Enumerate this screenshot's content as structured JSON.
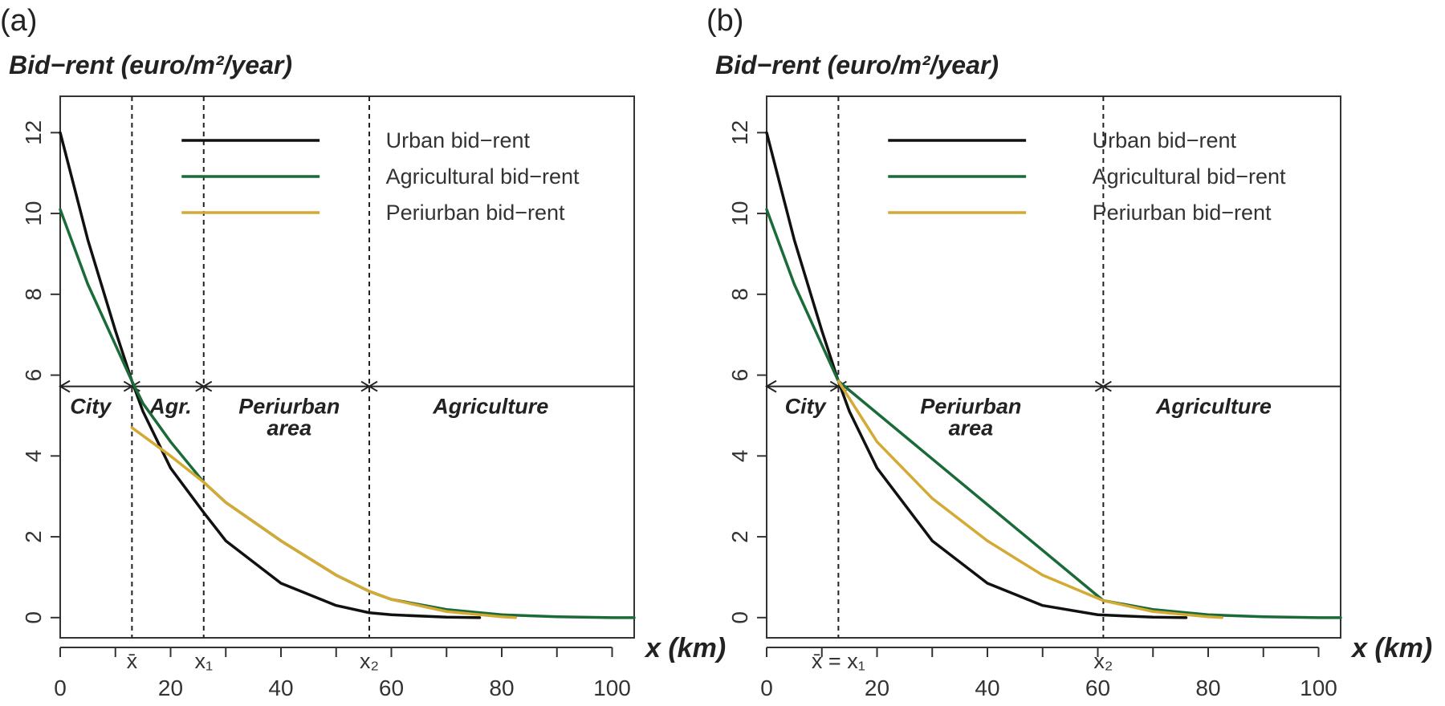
{
  "chart_data": [
    {
      "type": "line",
      "panel_label": "(a)",
      "ylabel": "Bid−rent (euro/m²/year)",
      "xlabel": "x (km)",
      "xlim": [
        0,
        104
      ],
      "ylim": [
        0,
        12.5
      ],
      "xticks": [
        0,
        20,
        40,
        60,
        80,
        100
      ],
      "yticks": [
        0,
        2,
        4,
        6,
        8,
        10,
        12
      ],
      "grid": false,
      "legend_position": "top-right",
      "series": [
        {
          "name": "Urban bid−rent",
          "color": "#111111",
          "x": [
            0,
            5,
            10,
            13,
            15,
            20,
            26,
            30,
            40,
            50,
            56,
            60,
            70,
            76
          ],
          "y": [
            12.0,
            9.35,
            7.1,
            5.85,
            5.1,
            3.7,
            2.6,
            1.9,
            0.85,
            0.3,
            0.12,
            0.07,
            0.01,
            0.0
          ]
        },
        {
          "name": "Agricultural bid−rent",
          "color": "#1a6b38",
          "x": [
            0,
            5,
            10,
            13,
            15,
            20,
            26,
            30,
            40,
            50,
            56,
            60,
            70,
            80,
            90,
            100,
            104
          ],
          "y": [
            10.1,
            8.25,
            6.75,
            5.85,
            5.3,
            4.35,
            3.35,
            2.85,
            1.9,
            1.05,
            0.65,
            0.45,
            0.2,
            0.07,
            0.02,
            0.0,
            0.0
          ]
        },
        {
          "name": "Periurban bid−rent",
          "color": "#d4aa35",
          "x": [
            13,
            20,
            26,
            30,
            40,
            50,
            56,
            60,
            70,
            80,
            82.5
          ],
          "y": [
            4.7,
            4.0,
            3.35,
            2.85,
            1.9,
            1.05,
            0.65,
            0.45,
            0.15,
            0.02,
            0.0
          ]
        }
      ],
      "boundary_y": 6,
      "vlines": [
        {
          "x": 13,
          "label": "x̄"
        },
        {
          "x": 26,
          "label": "x₁"
        },
        {
          "x": 56,
          "label": "x₂"
        }
      ],
      "regions": [
        {
          "label": "City",
          "x": 5.5,
          "lines": [
            "City"
          ]
        },
        {
          "label": "Agr.",
          "x": 20,
          "lines": [
            "Agr."
          ]
        },
        {
          "label": "Periurban area",
          "x": 41.5,
          "lines": [
            "Periurban",
            "area"
          ]
        },
        {
          "label": "Agriculture",
          "x": 78,
          "lines": [
            "Agriculture"
          ]
        }
      ]
    },
    {
      "type": "line",
      "panel_label": "(b)",
      "ylabel": "Bid−rent (euro/m²/year)",
      "xlabel": "x (km)",
      "xlim": [
        0,
        104
      ],
      "ylim": [
        0,
        12.5
      ],
      "xticks": [
        0,
        20,
        40,
        60,
        80,
        100
      ],
      "yticks": [
        0,
        2,
        4,
        6,
        8,
        10,
        12
      ],
      "grid": false,
      "legend_position": "top-right",
      "series": [
        {
          "name": "Urban bid−rent",
          "color": "#111111",
          "x": [
            0,
            5,
            10,
            13,
            15,
            20,
            30,
            40,
            50,
            60,
            70,
            76
          ],
          "y": [
            12.0,
            9.35,
            7.1,
            5.85,
            5.1,
            3.7,
            1.9,
            0.85,
            0.3,
            0.07,
            0.01,
            0.0
          ]
        },
        {
          "name": "Agricultural bid−rent",
          "color": "#1a6b38",
          "x": [
            0,
            5,
            10,
            13,
            61,
            70,
            80,
            90,
            100,
            104
          ],
          "y": [
            10.1,
            8.25,
            6.75,
            5.85,
            0.42,
            0.2,
            0.07,
            0.02,
            0.0,
            0.0
          ]
        },
        {
          "name": "Periurban bid−rent",
          "color": "#d4aa35",
          "x": [
            13,
            20,
            30,
            40,
            50,
            61,
            70,
            80,
            82.5
          ],
          "y": [
            5.85,
            4.35,
            2.95,
            1.9,
            1.05,
            0.42,
            0.15,
            0.02,
            0.0
          ]
        }
      ],
      "boundary_y": 6,
      "vlines": [
        {
          "x": 13,
          "label": "x̄ = x₁"
        },
        {
          "x": 61,
          "label": "x₂"
        }
      ],
      "regions": [
        {
          "label": "City",
          "x": 7,
          "lines": [
            "City"
          ]
        },
        {
          "label": "Periurban area",
          "x": 37,
          "lines": [
            "Periurban",
            "area"
          ]
        },
        {
          "label": "Agriculture",
          "x": 81,
          "lines": [
            "Agriculture"
          ]
        }
      ]
    }
  ]
}
